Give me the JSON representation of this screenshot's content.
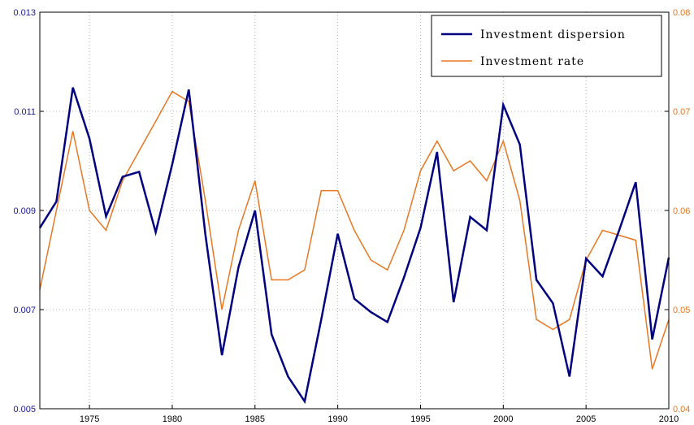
{
  "chart_data": {
    "type": "line",
    "x": [
      1972,
      1973,
      1974,
      1975,
      1976,
      1977,
      1978,
      1979,
      1980,
      1981,
      1982,
      1983,
      1984,
      1985,
      1986,
      1987,
      1988,
      1989,
      1990,
      1991,
      1992,
      1993,
      1994,
      1995,
      1996,
      1997,
      1998,
      1999,
      2000,
      2001,
      2002,
      2003,
      2004,
      2005,
      2006,
      2007,
      2008,
      2009,
      2010
    ],
    "series": [
      {
        "name": "Investment dispersion",
        "axis": "left",
        "color": "#000080",
        "values": [
          0.00865,
          0.00918,
          0.01148,
          0.01045,
          0.00888,
          0.00968,
          0.00978,
          0.00856,
          0.00993,
          0.01144,
          0.00852,
          0.00608,
          0.00785,
          0.009,
          0.0065,
          0.00565,
          0.00515,
          0.0068,
          0.00853,
          0.00722,
          0.00695,
          0.00675,
          0.00765,
          0.00865,
          0.01018,
          0.00715,
          0.00887,
          0.0086,
          0.01113,
          0.01033,
          0.0076,
          0.00713,
          0.00565,
          0.00803,
          0.00767,
          0.0086,
          0.00957,
          0.0064,
          0.00805
        ]
      },
      {
        "name": "Investment rate",
        "axis": "right",
        "color": "#e87722",
        "values": [
          0.052,
          0.06,
          0.068,
          0.06,
          0.058,
          0.063,
          0.066,
          0.069,
          0.072,
          0.071,
          0.061,
          0.05,
          0.058,
          0.063,
          0.053,
          0.053,
          0.054,
          0.062,
          0.062,
          0.058,
          0.055,
          0.054,
          0.058,
          0.064,
          0.067,
          0.064,
          0.065,
          0.063,
          0.067,
          0.061,
          0.049,
          0.048,
          0.049,
          0.055,
          0.058,
          0.0575,
          0.057,
          0.044,
          0.049
        ]
      }
    ],
    "xlim": [
      1972,
      2010
    ],
    "ylim_left": [
      0.005,
      0.013
    ],
    "ylim_right": [
      0.04,
      0.08
    ],
    "x_ticks": [
      "1975",
      "1980",
      "1985",
      "1990",
      "1995",
      "2000",
      "2005",
      "2010"
    ],
    "y_ticks_left": [
      "0.005",
      "0.007",
      "0.009",
      "0.011",
      "0.013"
    ],
    "y_ticks_right": [
      "0.04",
      "0.05",
      "0.06",
      "0.07",
      "0.08"
    ],
    "grid": true,
    "legend_position": "top-right"
  }
}
